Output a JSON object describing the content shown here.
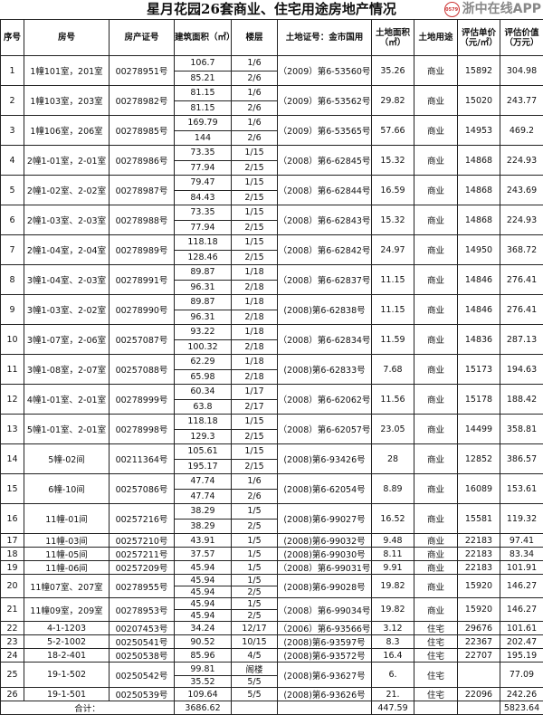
{
  "title": "星月花园26套商业、住宅用途房地产情况",
  "headers": [
    "序号",
    "房号",
    "房产证号",
    "建筑面积（㎡）",
    "楼层",
    "土地证号：金市国用",
    "土地面积（㎡）",
    "土地用途",
    "评估单价（元/㎡）",
    "评估价值（万元）"
  ],
  "rows": [
    {
      "seq": "1",
      "room": "1幢101室，201室",
      "cert": "00278951号",
      "sub": [
        {
          "area": "106.7",
          "floor": "1/6"
        },
        {
          "area": "85.21",
          "floor": "2/6"
        }
      ],
      "land_cert": "（2009）第6-53560号",
      "land_area": "35.26",
      "use": "商业",
      "price": "15892",
      "value": "304.98"
    },
    {
      "seq": "2",
      "room": "1幢103室，203室",
      "cert": "00278982号",
      "sub": [
        {
          "area": "81.15",
          "floor": "1/6"
        },
        {
          "area": "81.15",
          "floor": "2/6"
        }
      ],
      "land_cert": "（2009）第6-53562号",
      "land_area": "29.82",
      "use": "商业",
      "price": "15020",
      "value": "243.77"
    },
    {
      "seq": "3",
      "room": "1幢106室，206室",
      "cert": "00278985号",
      "sub": [
        {
          "area": "169.79",
          "floor": "1/6"
        },
        {
          "area": "144",
          "floor": "2/6"
        }
      ],
      "land_cert": "（2009）第6-53565号",
      "land_area": "57.66",
      "use": "商业",
      "price": "14953",
      "value": "469.2"
    },
    {
      "seq": "4",
      "room": "2幢1-01室，2-01室",
      "cert": "00278986号",
      "sub": [
        {
          "area": "73.35",
          "floor": "1/15"
        },
        {
          "area": "77.94",
          "floor": "2/15"
        }
      ],
      "land_cert": "（2008）第6-62845号",
      "land_area": "15.32",
      "use": "商业",
      "price": "14868",
      "value": "224.93"
    },
    {
      "seq": "5",
      "room": "2幢1-02室、2-02室",
      "cert": "00278987号",
      "sub": [
        {
          "area": "79.47",
          "floor": "1/15"
        },
        {
          "area": "84.43",
          "floor": "2/15"
        }
      ],
      "land_cert": "（2008）第6-62844号",
      "land_area": "16.59",
      "use": "商业",
      "price": "14868",
      "value": "243.69"
    },
    {
      "seq": "6",
      "room": "2幢1-03室、2-03室",
      "cert": "00278988号",
      "sub": [
        {
          "area": "73.35",
          "floor": "1/15"
        },
        {
          "area": "77.94",
          "floor": "2/15"
        }
      ],
      "land_cert": "（2008）第6-62843号",
      "land_area": "15.32",
      "use": "商业",
      "price": "14868",
      "value": "224.93"
    },
    {
      "seq": "7",
      "room": "2幢1-04室，2-04室",
      "cert": "00278989号",
      "sub": [
        {
          "area": "118.18",
          "floor": "1/15"
        },
        {
          "area": "128.46",
          "floor": "2/15"
        }
      ],
      "land_cert": "（2008）第6-62842号",
      "land_area": "24.97",
      "use": "商业",
      "price": "14950",
      "value": "368.72"
    },
    {
      "seq": "8",
      "room": "3幢1-04室、2-03室",
      "cert": "00278991号",
      "sub": [
        {
          "area": "89.87",
          "floor": "1/18"
        },
        {
          "area": "96.31",
          "floor": "2/18"
        }
      ],
      "land_cert": "（2008）第6-62837号",
      "land_area": "11.15",
      "use": "商业",
      "price": "14846",
      "value": "276.41"
    },
    {
      "seq": "9",
      "room": "3幢1-03室、2-02室",
      "cert": "00278990号",
      "sub": [
        {
          "area": "89.87",
          "floor": "1/18"
        },
        {
          "area": "96.31",
          "floor": "2/18"
        }
      ],
      "land_cert": "(2008)第6-62838号",
      "land_area": "11.15",
      "use": "商业",
      "price": "14846",
      "value": "276.41"
    },
    {
      "seq": "10",
      "room": "3幢1-07室，2-06室",
      "cert": "00257087号",
      "sub": [
        {
          "area": "93.22",
          "floor": "1/18"
        },
        {
          "area": "100.32",
          "floor": "2/18"
        }
      ],
      "land_cert": "（2008）第6-62834号",
      "land_area": "11.59",
      "use": "商业",
      "price": "14836",
      "value": "287.13"
    },
    {
      "seq": "11",
      "room": "3幢1-08室，2-07室",
      "cert": "00257088号",
      "sub": [
        {
          "area": "62.29",
          "floor": "1/18"
        },
        {
          "area": "65.98",
          "floor": "2/18"
        }
      ],
      "land_cert": "(2008)第6-62833号",
      "land_area": "7.68",
      "use": "商业",
      "price": "15173",
      "value": "194.63"
    },
    {
      "seq": "12",
      "room": "4幢1-01室、2-01室",
      "cert": "00278999号",
      "sub": [
        {
          "area": "60.34",
          "floor": "1/17"
        },
        {
          "area": "63.8",
          "floor": "2/17"
        }
      ],
      "land_cert": "（2008）第6-62062号",
      "land_area": "11.56",
      "use": "商业",
      "price": "15178",
      "value": "188.42"
    },
    {
      "seq": "13",
      "room": "5幢1-01室、2-01室",
      "cert": "00278998号",
      "sub": [
        {
          "area": "118.18",
          "floor": "1/15"
        },
        {
          "area": "129.3",
          "floor": "2/15"
        }
      ],
      "land_cert": "（2008）第6-62057号",
      "land_area": "23.05",
      "use": "商业",
      "price": "14499",
      "value": "358.81"
    },
    {
      "seq": "14",
      "room": "5幢-02间",
      "cert": "00211364号",
      "sub": [
        {
          "area": "105.61",
          "floor": "1/15"
        },
        {
          "area": "195.17",
          "floor": "2/15"
        }
      ],
      "land_cert": "(2008)第6-93426号",
      "land_area": "28",
      "use": "商业",
      "price": "12852",
      "value": "386.57"
    },
    {
      "seq": "15",
      "room": "6幢-10间",
      "cert": "00257086号",
      "sub": [
        {
          "area": "47.74",
          "floor": "1/6"
        },
        {
          "area": "47.74",
          "floor": "2/6"
        }
      ],
      "land_cert": "(2008)第6-62054号",
      "land_area": "8.89",
      "use": "商业",
      "price": "16089",
      "value": "153.61"
    },
    {
      "seq": "16",
      "room": "11幢-01间",
      "cert": "00257216号",
      "sub": [
        {
          "area": "38.29",
          "floor": "1/5"
        },
        {
          "area": "38.29",
          "floor": "2/5"
        }
      ],
      "land_cert": "(2008)第6-99027号",
      "land_area": "16.52",
      "use": "商业",
      "price": "15581",
      "value": "119.32"
    },
    {
      "seq": "17",
      "room": "11幢-03间",
      "cert": "00257210号",
      "sub": [
        {
          "area": "43.91",
          "floor": "1/5"
        }
      ],
      "land_cert": "(2008)第6-99032号",
      "land_area": "9.48",
      "use": "商业",
      "price": "22183",
      "value": "97.41"
    },
    {
      "seq": "18",
      "room": "11幢-05间",
      "cert": "00257211号",
      "sub": [
        {
          "area": "37.57",
          "floor": "1/5"
        }
      ],
      "land_cert": "(2008)第6-99030号",
      "land_area": "8.11",
      "use": "商业",
      "price": "22183",
      "value": "83.34"
    },
    {
      "seq": "19",
      "room": "11幢-06间",
      "cert": "00257209号",
      "sub": [
        {
          "area": "45.94",
          "floor": "1/5"
        }
      ],
      "land_cert": "（2008）第6-99031号",
      "land_area": "9.91",
      "use": "商业",
      "price": "22183",
      "value": "101.91"
    },
    {
      "seq": "20",
      "room": "11幢07室、207室",
      "cert": "00278955号",
      "sub": [
        {
          "area": "45.94",
          "floor": "1/5"
        },
        {
          "area": "45.94",
          "floor": "2/5"
        }
      ],
      "land_cert": "(2008)第6-99028号",
      "land_area": "19.82",
      "use": "商业",
      "price": "15920",
      "value": "146.27"
    },
    {
      "seq": "21",
      "room": "11幢09室，209室",
      "cert": "00278953号",
      "sub": [
        {
          "area": "45.94",
          "floor": "1/5"
        },
        {
          "area": "45.94",
          "floor": "2/5"
        }
      ],
      "land_cert": "（2008）第6-99034号",
      "land_area": "19.82",
      "use": "商业",
      "price": "15920",
      "value": "146.27"
    },
    {
      "seq": "22",
      "room": "4-1-1203",
      "cert": "00207453号",
      "sub": [
        {
          "area": "34.24",
          "floor": "12/17"
        }
      ],
      "land_cert": "（2006）第6-93566号",
      "land_area": "3.12",
      "use": "住宅",
      "price": "29676",
      "value": "101.61"
    },
    {
      "seq": "23",
      "room": "5-2-1002",
      "cert": "00250541号",
      "sub": [
        {
          "area": "90.52",
          "floor": "10/15"
        }
      ],
      "land_cert": "(2008)第6-93597号",
      "land_area": "8.3",
      "use": "住宅",
      "price": "22367",
      "value": "202.47"
    },
    {
      "seq": "24",
      "room": "18-2-401",
      "cert": "00250538号",
      "sub": [
        {
          "area": "85.96",
          "floor": "4/5"
        }
      ],
      "land_cert": "(2008)第6-93572号",
      "land_area": "16.4",
      "use": "住宅",
      "price": "22707",
      "value": "195.19"
    },
    {
      "seq": "25",
      "room": "19-1-502",
      "cert": "00250542号",
      "sub": [
        {
          "area": "99.81",
          "floor": "阁楼"
        },
        {
          "area": "35.52",
          "floor": "5/5"
        }
      ],
      "land_cert": "(2008)第6-93627号",
      "land_area": "6.",
      "use": "住宅",
      "price": "",
      "value": "77.09"
    },
    {
      "seq": "26",
      "room": "19-1-501",
      "cert": "00250539号",
      "sub": [
        {
          "area": "109.64",
          "floor": "5/5"
        }
      ],
      "land_cert": "(2008)第6-93626号",
      "land_area": "21.",
      "use": "住宅",
      "price": "22096",
      "value": "242.26"
    }
  ],
  "total": {
    "label": "合计：",
    "area": "3686.62",
    "land_area": "447.59",
    "value": "5823.64"
  },
  "watermark": {
    "logo": "0579",
    "text": "浙中在线APP"
  }
}
